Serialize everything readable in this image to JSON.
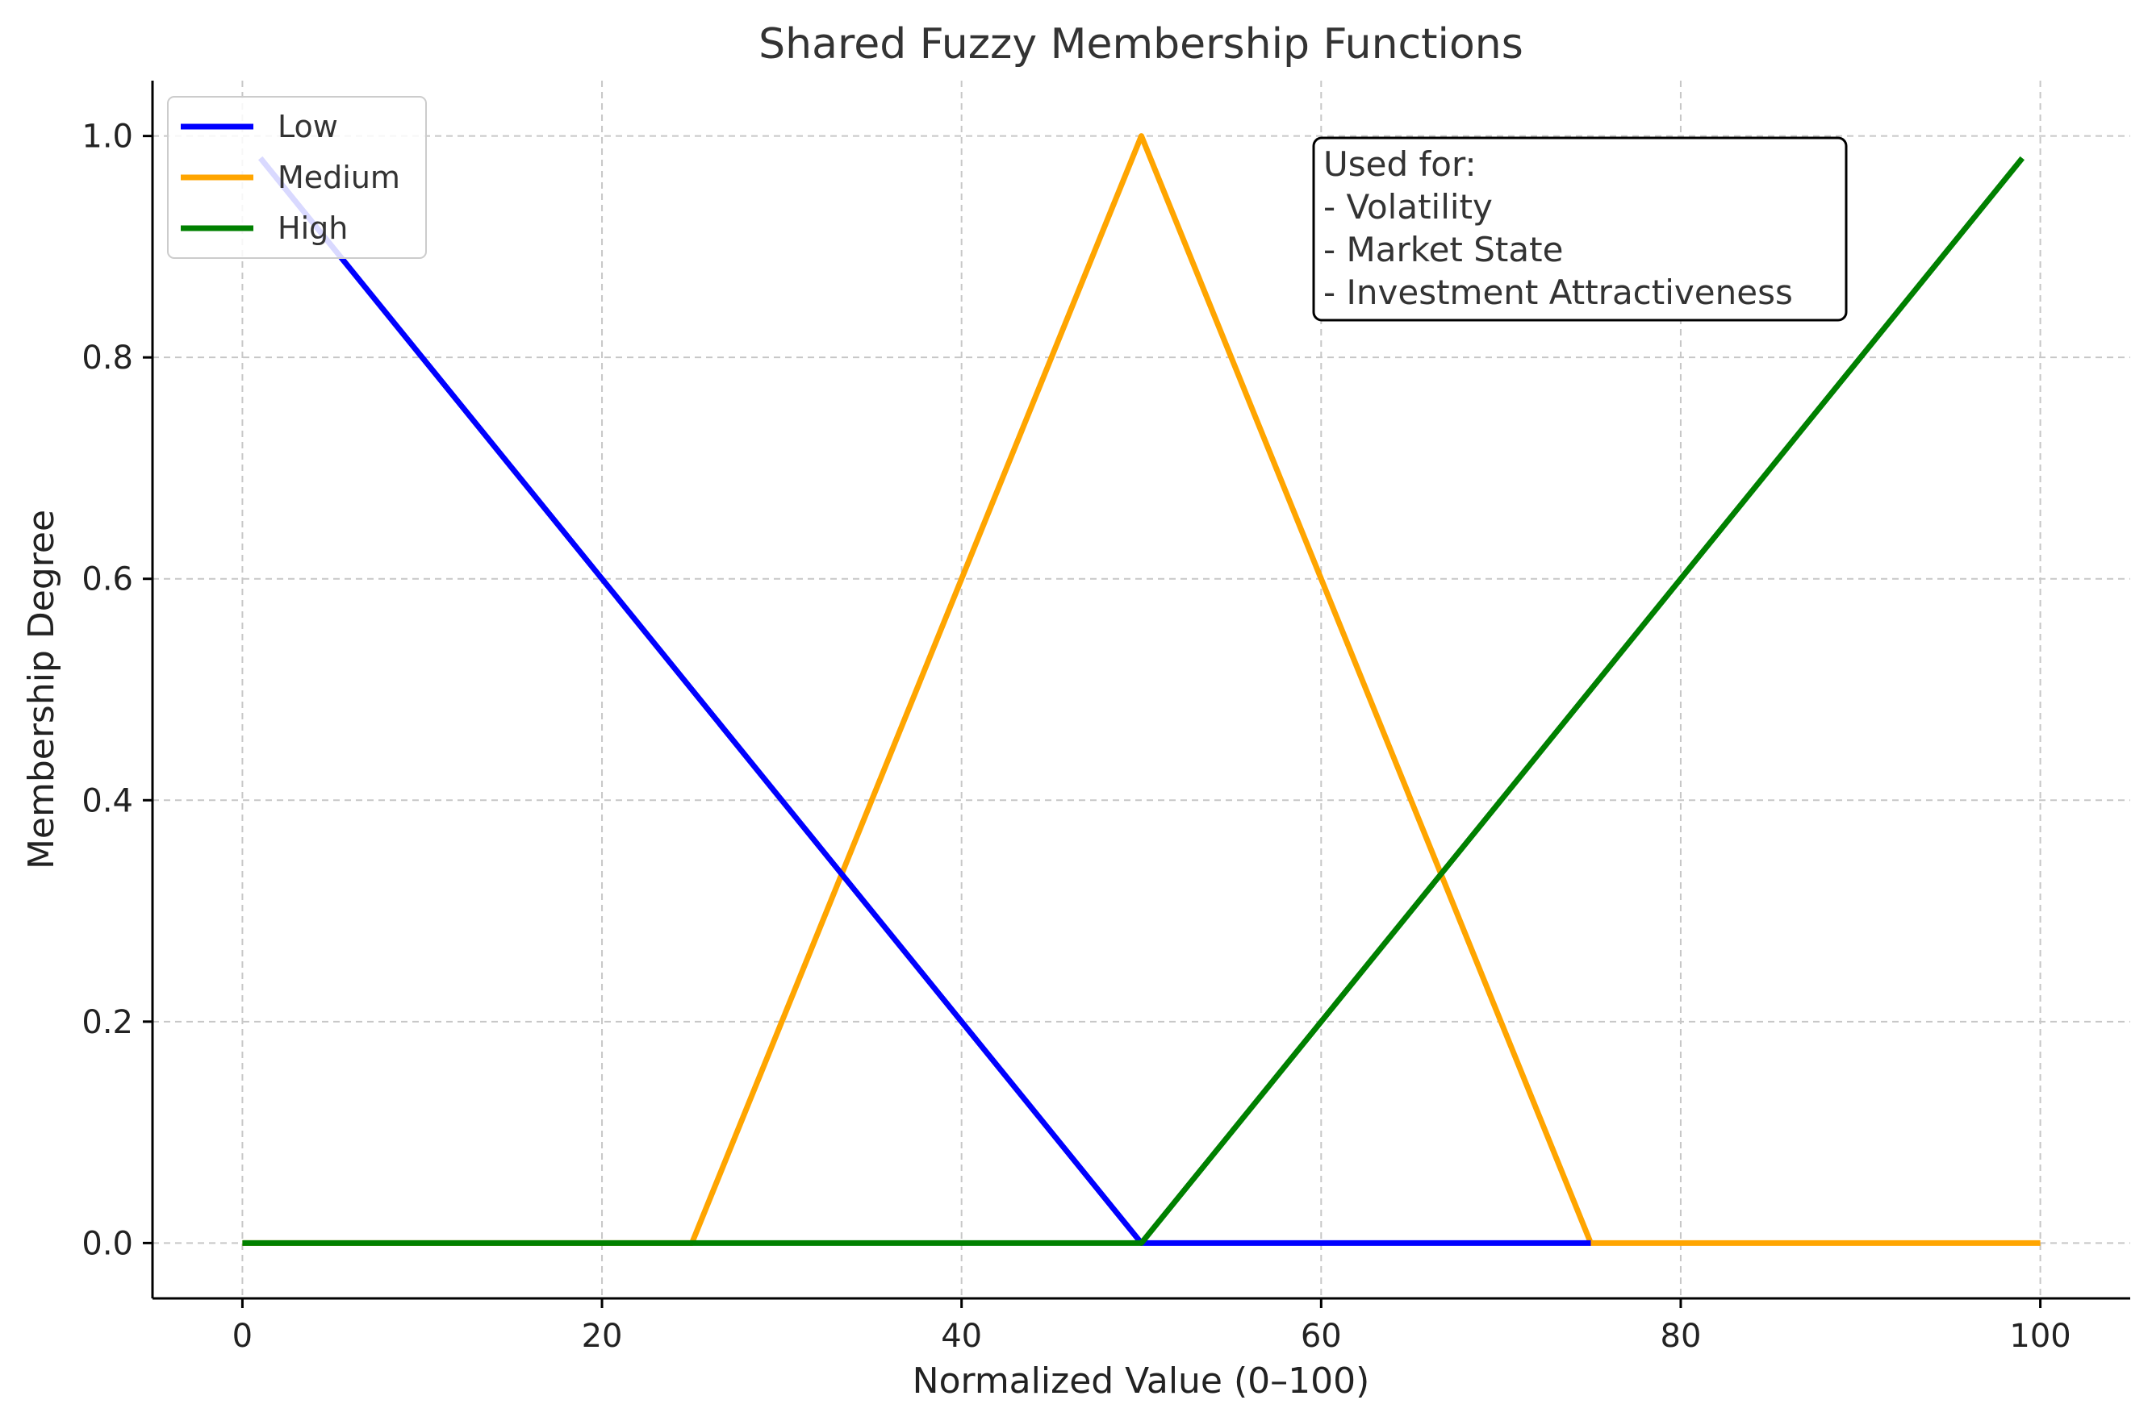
{
  "chart_data": {
    "type": "line",
    "title": "Shared Fuzzy Membership Functions",
    "xlabel": "Normalized Value (0–100)",
    "ylabel": "Membership Degree",
    "xlim": [
      -5,
      105
    ],
    "ylim": [
      -0.05,
      1.05
    ],
    "xticks": [
      0,
      20,
      40,
      60,
      80,
      100
    ],
    "xtick_labels": [
      "0",
      "20",
      "40",
      "60",
      "80",
      "100"
    ],
    "yticks": [
      0.0,
      0.2,
      0.4,
      0.6,
      0.8,
      1.0
    ],
    "ytick_labels": [
      "0.0",
      "0.2",
      "0.4",
      "0.6",
      "0.8",
      "1.0"
    ],
    "grid": true,
    "legend_position": "upper-left",
    "series": [
      {
        "name": "Low",
        "color": "#0000ff",
        "x": [
          1,
          50,
          75
        ],
        "y": [
          0.98,
          0,
          0
        ]
      },
      {
        "name": "Medium",
        "color": "#ffa500",
        "x": [
          0,
          25,
          50,
          75,
          100
        ],
        "y": [
          0,
          0,
          1,
          0,
          0
        ]
      },
      {
        "name": "High",
        "color": "#008000",
        "x": [
          0,
          50,
          99
        ],
        "y": [
          0,
          0,
          0.98
        ]
      }
    ],
    "annotation": {
      "lines": [
        "Used for:",
        "- Volatility",
        "- Market State",
        "- Investment Attractiveness"
      ],
      "position": "upper-right"
    }
  }
}
